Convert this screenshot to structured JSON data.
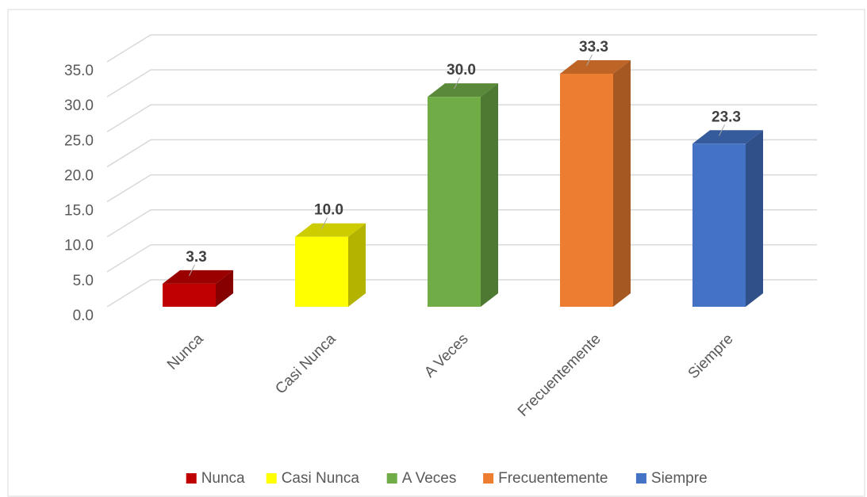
{
  "chart_data": {
    "type": "bar3d",
    "categories": [
      "Nunca",
      "Casi Nunca",
      "A Veces",
      "Frecuentemente",
      "Siempre"
    ],
    "values": [
      3.3,
      10.0,
      30.0,
      33.3,
      23.3
    ],
    "value_labels": [
      "3.3",
      "10.0",
      "30.0",
      "33.3",
      "23.3"
    ],
    "colors": [
      "#c00000",
      "#ffff00",
      "#70ad47",
      "#ed7d31",
      "#4472c4"
    ],
    "ylim": [
      0,
      35
    ],
    "yticks": [
      {
        "value": 0,
        "label": "0.0"
      },
      {
        "value": 5,
        "label": "5.0"
      },
      {
        "value": 10,
        "label": "10.0"
      },
      {
        "value": 15,
        "label": "15.0"
      },
      {
        "value": 20,
        "label": "20.0"
      },
      {
        "value": 25,
        "label": "25.0"
      },
      {
        "value": 30,
        "label": "30.0"
      },
      {
        "value": 35,
        "label": "35.0"
      }
    ],
    "grid": true,
    "legend": "bottom"
  }
}
